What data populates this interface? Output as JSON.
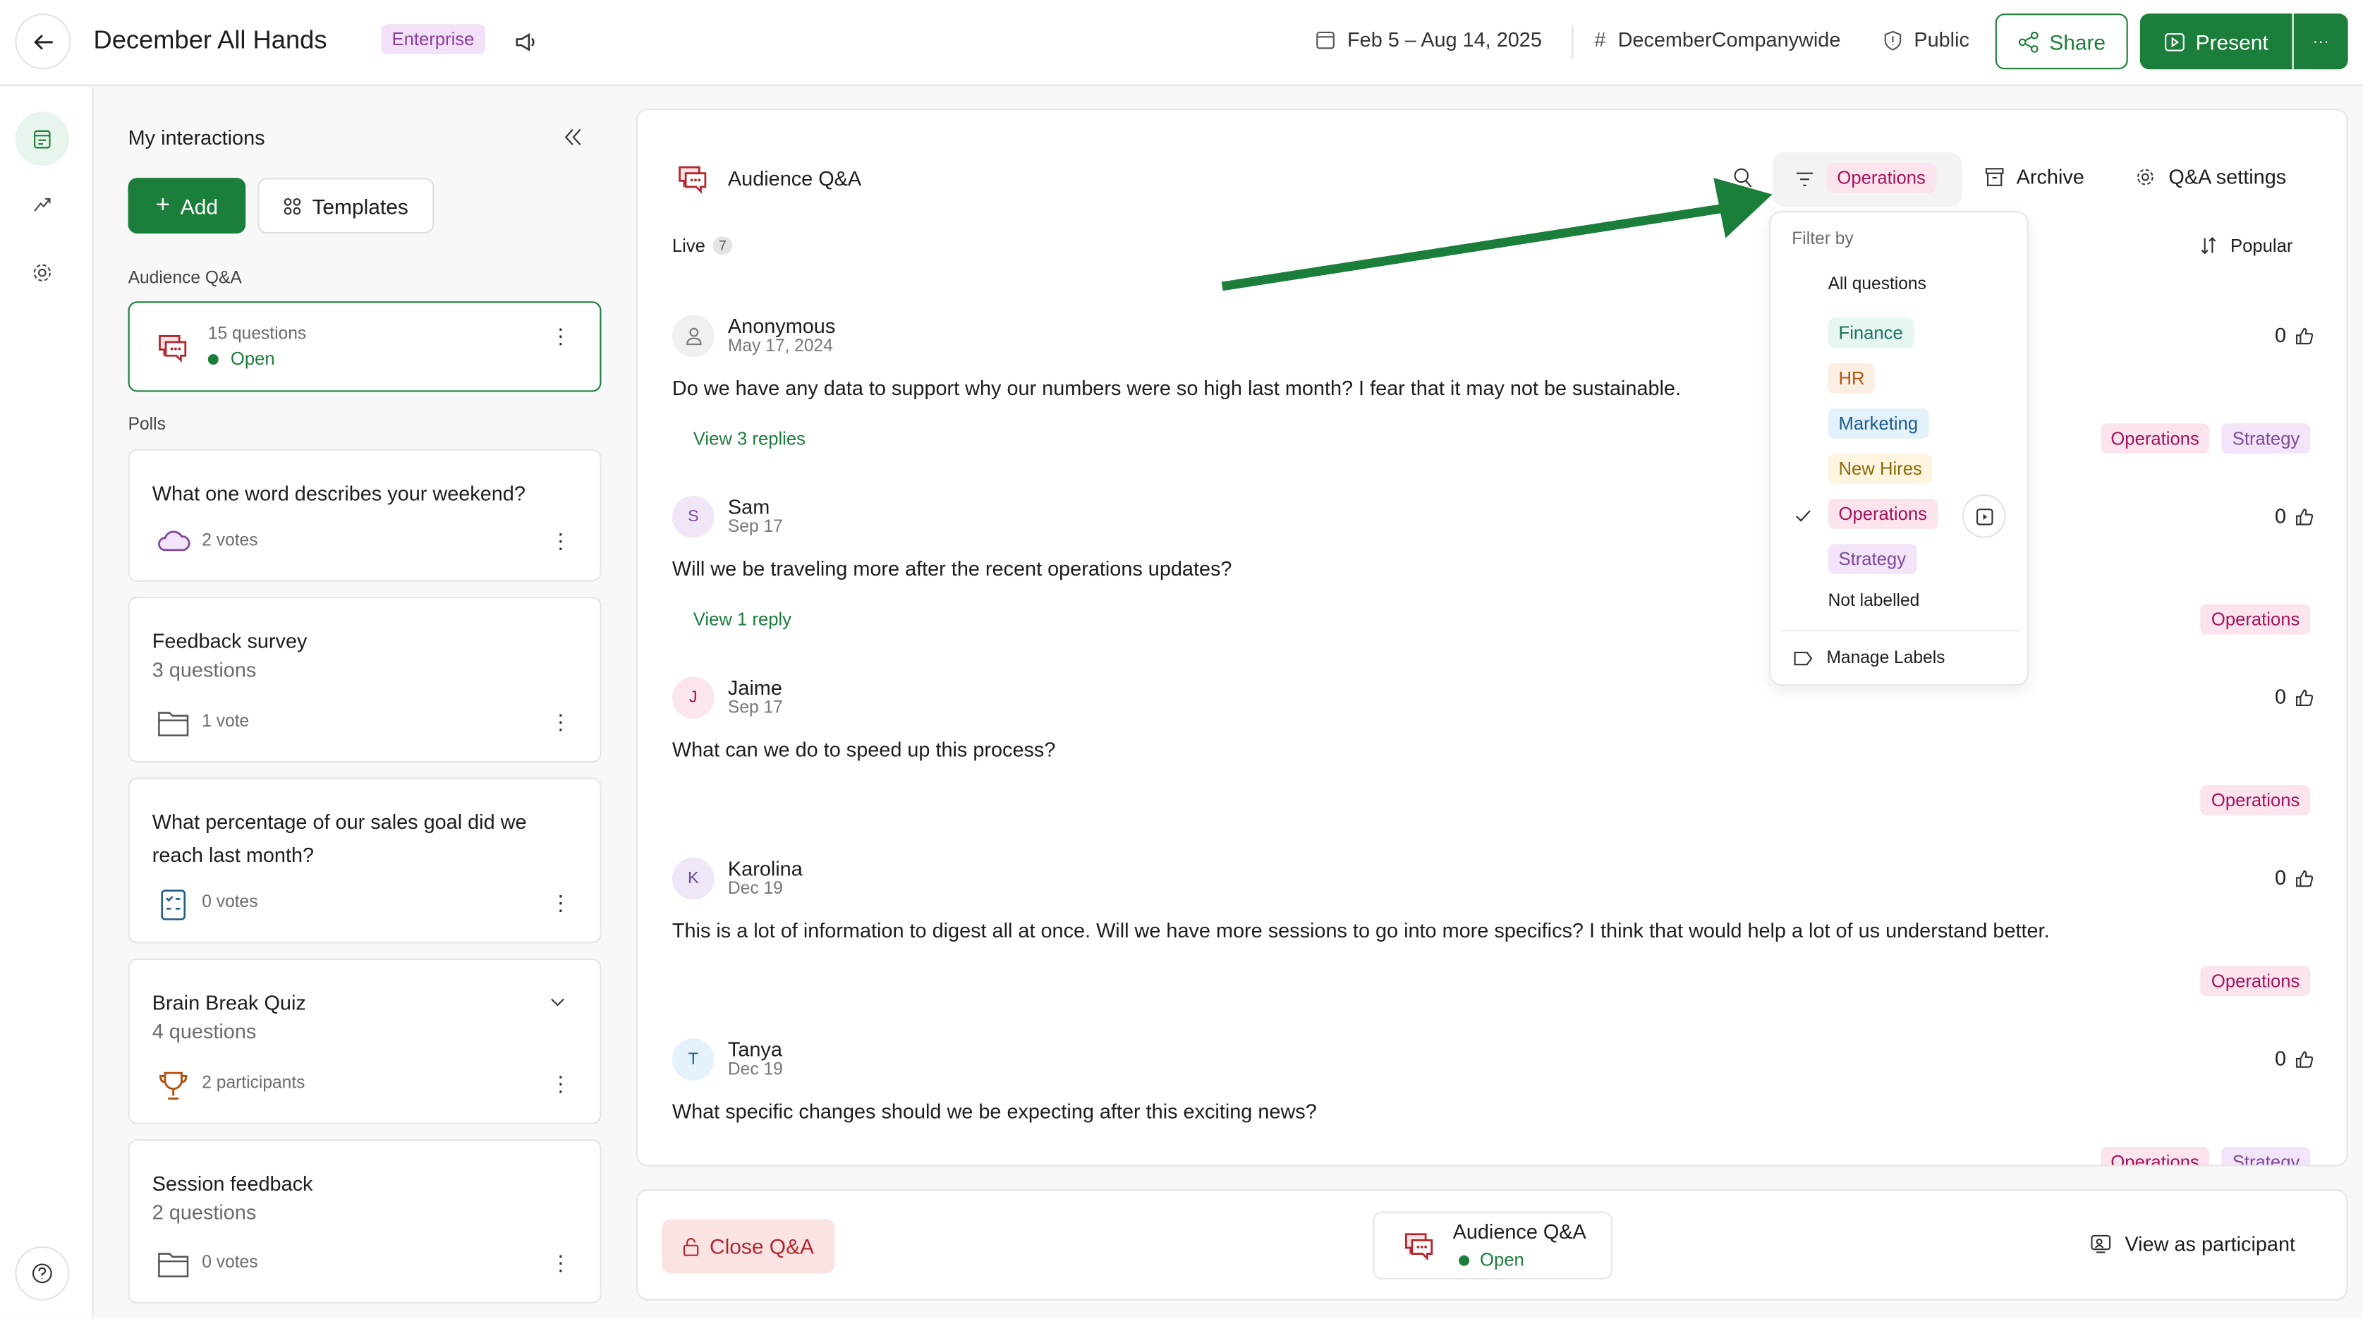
{
  "header": {
    "title": "December All Hands",
    "plan_badge": "Enterprise",
    "date_range": "Feb 5 – Aug 14, 2025",
    "channel": "DecemberCompanywide",
    "visibility": "Public",
    "share_label": "Share",
    "present_label": "Present",
    "more_label": "···"
  },
  "colors": {
    "brand_green": "#1b7e3a",
    "accent_red": "#b3262d"
  },
  "sidebar": {
    "title": "My interactions",
    "add_label": "Add",
    "templates_label": "Templates",
    "qa_section": "Audience Q&A",
    "qa_card": {
      "count": "15 questions",
      "status": "Open"
    },
    "polls_section": "Polls",
    "polls": [
      {
        "title": "What one word describes your weekend?",
        "subtitle": "",
        "meta": "2 votes",
        "icon": "word-cloud-icon"
      },
      {
        "title": "Feedback survey",
        "subtitle": "3 questions",
        "meta": "1 vote",
        "icon": "survey-folder-icon"
      },
      {
        "title": "What percentage of our sales goal did we reach last month?",
        "subtitle": "",
        "meta": "0 votes",
        "icon": "multiple-choice-icon"
      },
      {
        "title": "Brain Break Quiz",
        "subtitle": "4 questions",
        "meta": "2 participants",
        "icon": "trophy-icon"
      },
      {
        "title": "Session feedback",
        "subtitle": "2 questions",
        "meta": "0 votes",
        "icon": "survey-folder-icon"
      }
    ]
  },
  "main": {
    "title": "Audience Q&A",
    "active_filter": "Operations",
    "archive_label": "Archive",
    "settings_label": "Q&A settings",
    "live_label": "Live",
    "live_count": "7",
    "sort_label": "Popular",
    "questions": [
      {
        "initial": "",
        "name": "Anonymous",
        "date": "May 17, 2024",
        "text": "Do we have any data to support why our numbers were so high last month? I fear that it may not be sustainable.",
        "replies": "View 3 replies",
        "votes": "0",
        "tags": [
          "Operations",
          "Strategy"
        ],
        "avatar_bg": "#f0f0f0",
        "avatar_fg": "#777"
      },
      {
        "initial": "S",
        "name": "Sam",
        "date": "Sep 17",
        "text": "Will we be traveling more after the recent operations updates?",
        "replies": "View 1 reply",
        "votes": "0",
        "tags": [
          "Operations"
        ],
        "avatar_bg": "#f1e6f8",
        "avatar_fg": "#7b4a98"
      },
      {
        "initial": "J",
        "name": "Jaime",
        "date": "Sep 17",
        "text": "What can we do to speed up this process?",
        "replies": "",
        "votes": "0",
        "tags": [
          "Operations"
        ],
        "avatar_bg": "#fbe6ee",
        "avatar_fg": "#a3135a"
      },
      {
        "initial": "K",
        "name": "Karolina",
        "date": "Dec 19",
        "text": "This is a lot of information to digest all at once. Will we have more sessions to go into more specifics? I think that would help a lot of us understand better.",
        "replies": "",
        "votes": "0",
        "tags": [
          "Operations"
        ],
        "avatar_bg": "#efe6f8",
        "avatar_fg": "#6a4a98"
      },
      {
        "initial": "T",
        "name": "Tanya",
        "date": "Dec 19",
        "text": "What specific changes should we be expecting after this exciting news?",
        "replies": "",
        "votes": "0",
        "tags": [
          "Operations",
          "Strategy"
        ],
        "avatar_bg": "#e3f2fb",
        "avatar_fg": "#1e5c8c"
      }
    ]
  },
  "tag_colors": {
    "Finance": {
      "bg": "#e6f6f1",
      "fg": "#1e7262"
    },
    "HR": {
      "bg": "#fbeee2",
      "fg": "#b5530f"
    },
    "Marketing": {
      "bg": "#e3f1fb",
      "fg": "#1e5c8c"
    },
    "New Hires": {
      "bg": "#fdf5e0",
      "fg": "#8a6a0a"
    },
    "Operations": {
      "bg": "#fbe4ee",
      "fg": "#a3135a"
    },
    "Strategy": {
      "bg": "#f3e4f9",
      "fg": "#7b4a98"
    }
  },
  "filter_menu": {
    "heading": "Filter by",
    "all": "All questions",
    "labels": [
      "Finance",
      "HR",
      "Marketing",
      "New Hires",
      "Operations",
      "Strategy"
    ],
    "selected": "Operations",
    "not_labelled": "Not labelled",
    "manage": "Manage Labels"
  },
  "footer": {
    "close_label": "Close Q&A",
    "card_title": "Audience Q&A",
    "card_status": "Open",
    "participant_label": "View as participant"
  }
}
